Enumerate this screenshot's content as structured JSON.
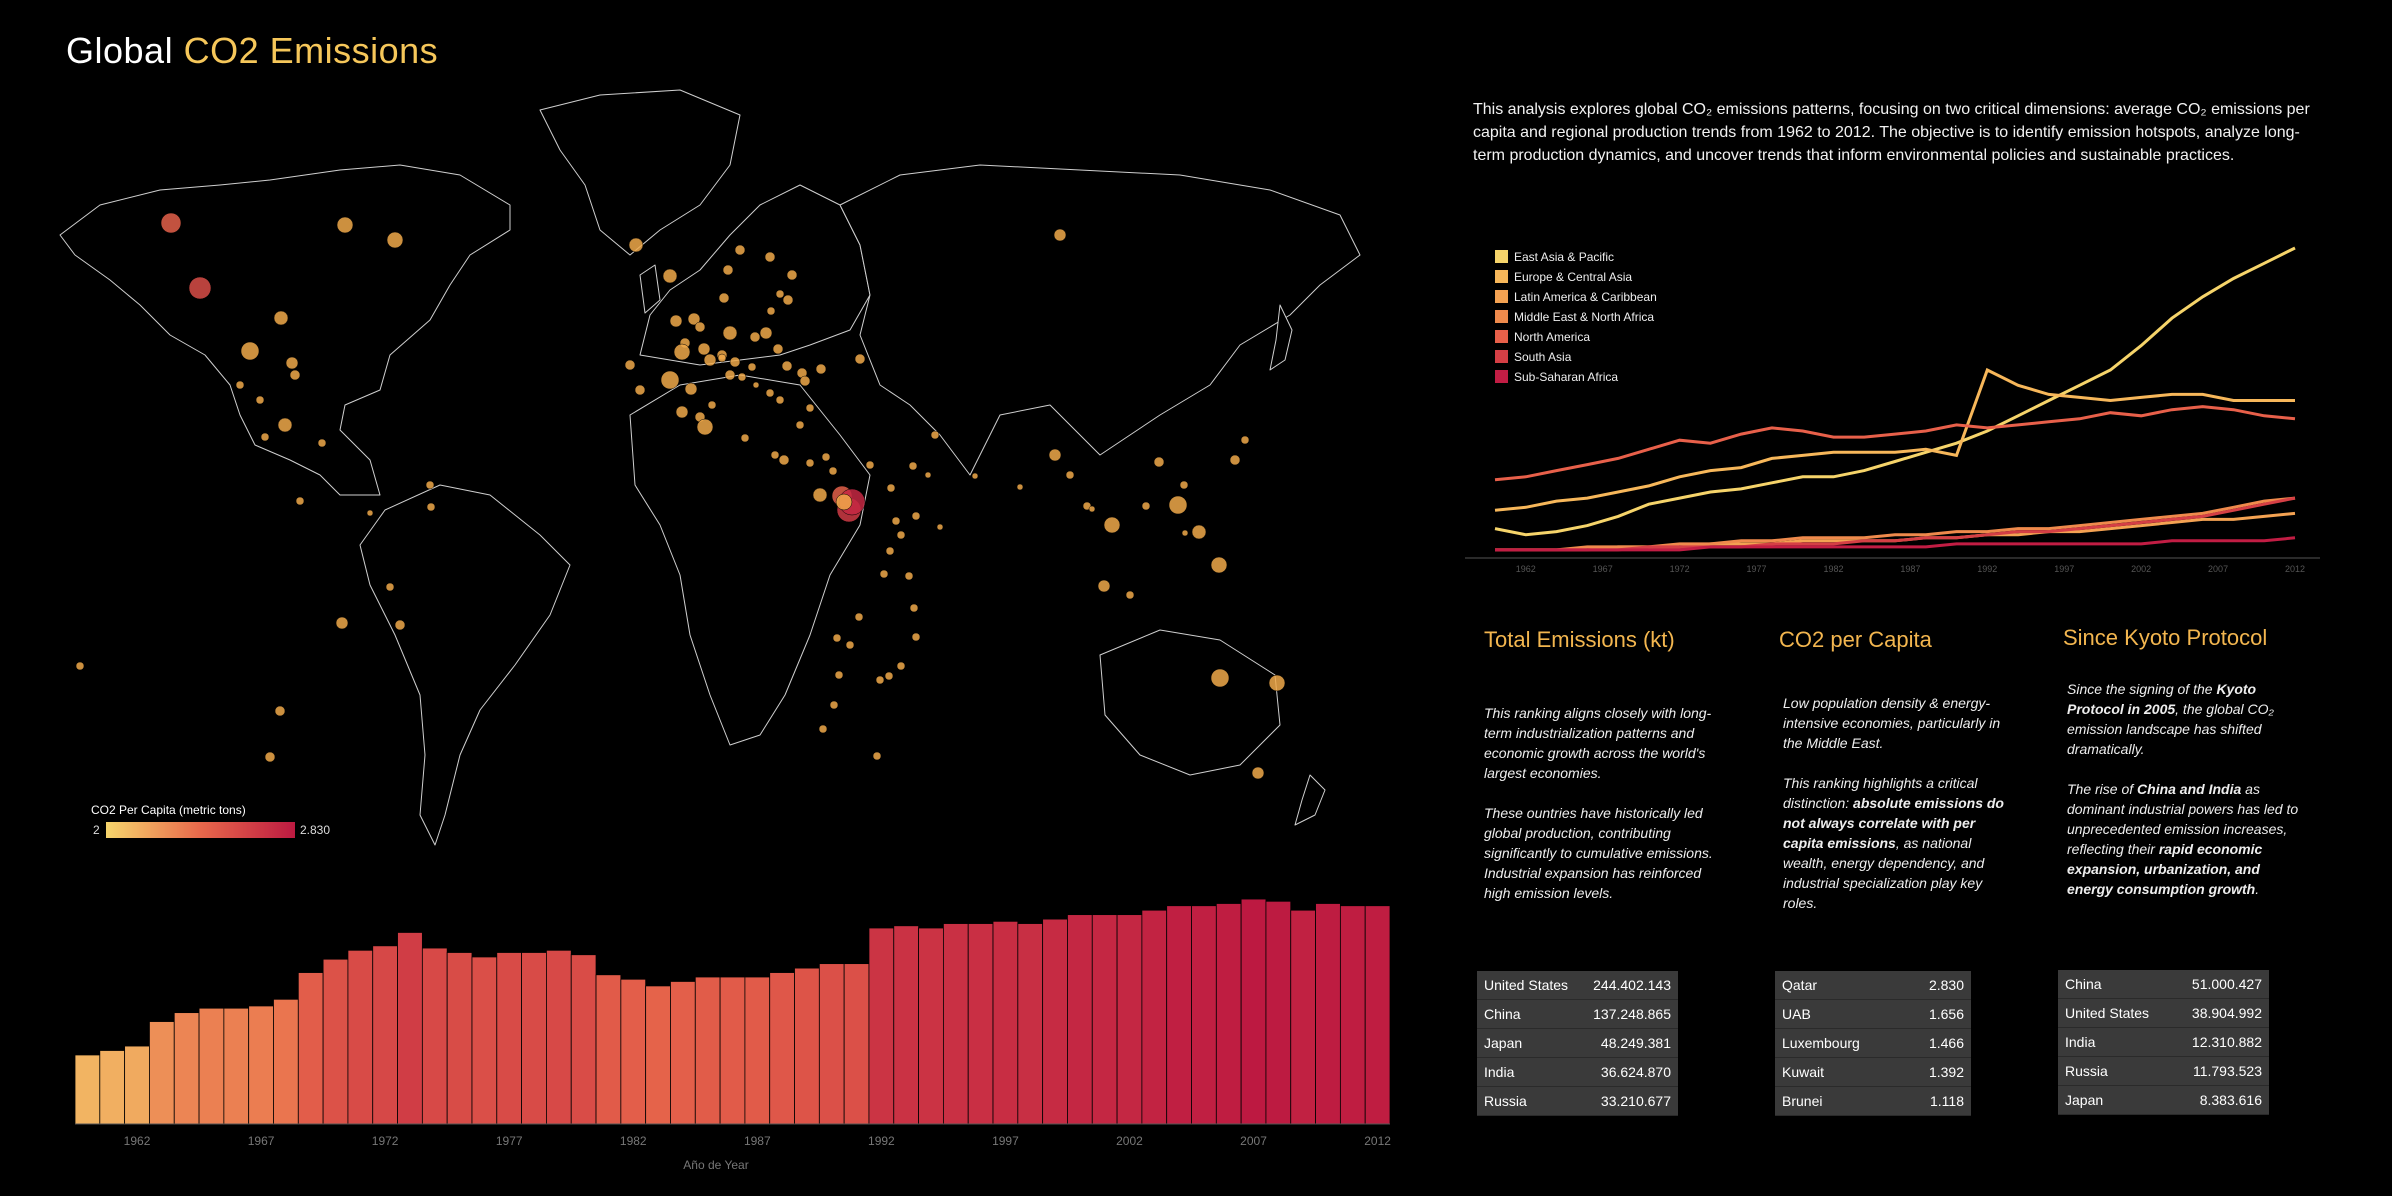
{
  "title": {
    "prefix": "Global ",
    "highlight": "CO2 Emissions"
  },
  "intro": "This analysis explores global CO₂ emissions patterns, focusing on two critical dimensions: average CO₂ emissions per capita and regional production trends from 1962 to 2012. The objective is to identify emission hotspots, analyze long-term production dynamics, and uncover trends that inform environmental policies and sustainable practices.",
  "map_legend": {
    "title": "CO2 Per Capita (metric tons)",
    "min": "2",
    "max": "2.830"
  },
  "colors": {
    "accent": "#f6c75a",
    "bar_low": "#f6d56c",
    "bar_mid": "#e8684b",
    "bar_high": "#bd1a41",
    "panel": "#3a3a3a"
  },
  "sections": [
    {
      "title": "Total Emissions (kt)"
    },
    {
      "title": "CO2 per Capita"
    },
    {
      "title": "Since Kyoto Protocol"
    }
  ],
  "tables": {
    "total": [
      {
        "country": "United States",
        "value": "244.402.143"
      },
      {
        "country": "China",
        "value": "137.248.865"
      },
      {
        "country": "Japan",
        "value": "48.249.381"
      },
      {
        "country": "India",
        "value": "36.624.870"
      },
      {
        "country": "Russia",
        "value": "33.210.677"
      }
    ],
    "per_capita": [
      {
        "country": "Qatar",
        "value": "2.830"
      },
      {
        "country": "UAB",
        "value": "1.656"
      },
      {
        "country": "Luxembourg",
        "value": "1.466"
      },
      {
        "country": "Kuwait",
        "value": "1.392"
      },
      {
        "country": "Brunei",
        "value": "1.118"
      }
    ],
    "kyoto": [
      {
        "country": "China",
        "value": "51.000.427"
      },
      {
        "country": "United States",
        "value": "38.904.992"
      },
      {
        "country": "India",
        "value": "12.310.882"
      },
      {
        "country": "Russia",
        "value": "11.793.523"
      },
      {
        "country": "Japan",
        "value": "8.383.616"
      }
    ]
  },
  "chart_data": [
    {
      "type": "line",
      "x": [
        1960,
        1962,
        1964,
        1966,
        1968,
        1970,
        1972,
        1974,
        1976,
        1978,
        1980,
        1982,
        1984,
        1986,
        1988,
        1990,
        1992,
        1994,
        1996,
        1998,
        2000,
        2002,
        2004,
        2006,
        2008,
        2010,
        2012
      ],
      "x_tick_labels": [
        "1962",
        "1967",
        "1972",
        "1977",
        "1982",
        "1987",
        "1992",
        "1997",
        "2002",
        "2007",
        "2012"
      ],
      "ylim": [
        0,
        100
      ],
      "grid": false,
      "legend_position": "top-left",
      "series": [
        {
          "name": "East Asia & Pacific",
          "color": "#f6d46a",
          "values": [
            8,
            6,
            7,
            9,
            12,
            16,
            18,
            20,
            21,
            23,
            25,
            25,
            27,
            30,
            33,
            36,
            40,
            45,
            50,
            55,
            60,
            68,
            77,
            84,
            90,
            95,
            100
          ]
        },
        {
          "name": "Europe & Central Asia",
          "color": "#f7b75a",
          "values": [
            14,
            15,
            17,
            18,
            20,
            22,
            25,
            27,
            28,
            31,
            32,
            33,
            33,
            33,
            34,
            32,
            60,
            55,
            52,
            51,
            50,
            51,
            52,
            52,
            50,
            50,
            50
          ]
        },
        {
          "name": "Latin America & Caribbean",
          "color": "#f4a252",
          "values": [
            1,
            1,
            1,
            1,
            2,
            2,
            2,
            3,
            3,
            3,
            4,
            4,
            4,
            4,
            5,
            5,
            6,
            6,
            7,
            7,
            8,
            9,
            10,
            11,
            11,
            12,
            13
          ]
        },
        {
          "name": "Middle East & North Africa",
          "color": "#ef8a4c",
          "values": [
            1,
            1,
            1,
            2,
            2,
            2,
            3,
            3,
            4,
            4,
            5,
            5,
            5,
            6,
            6,
            7,
            7,
            8,
            8,
            9,
            10,
            11,
            12,
            13,
            15,
            17,
            18
          ]
        },
        {
          "name": "North America",
          "color": "#e8604a",
          "values": [
            24,
            25,
            27,
            29,
            31,
            34,
            37,
            36,
            39,
            41,
            40,
            38,
            38,
            39,
            40,
            42,
            41,
            42,
            43,
            44,
            46,
            45,
            47,
            48,
            47,
            45,
            44
          ]
        },
        {
          "name": "South Asia",
          "color": "#d53f45",
          "values": [
            1,
            1,
            1,
            1,
            1,
            2,
            2,
            2,
            2,
            3,
            3,
            3,
            4,
            4,
            5,
            5,
            6,
            7,
            7,
            8,
            9,
            10,
            11,
            12,
            14,
            16,
            18
          ]
        },
        {
          "name": "Sub-Saharan Africa",
          "color": "#c21d44",
          "values": [
            1,
            1,
            1,
            1,
            1,
            1,
            1,
            2,
            2,
            2,
            2,
            2,
            2,
            2,
            2,
            3,
            3,
            3,
            3,
            3,
            3,
            3,
            4,
            4,
            4,
            4,
            5
          ]
        }
      ]
    },
    {
      "type": "bar",
      "categories": [
        "1960",
        "1961",
        "1962",
        "1963",
        "1964",
        "1965",
        "1966",
        "1967",
        "1968",
        "1969",
        "1970",
        "1971",
        "1972",
        "1973",
        "1974",
        "1975",
        "1976",
        "1977",
        "1978",
        "1979",
        "1980",
        "1981",
        "1982",
        "1983",
        "1984",
        "1985",
        "1986",
        "1987",
        "1988",
        "1989",
        "1990",
        "1991",
        "1992",
        "1993",
        "1994",
        "1995",
        "1996",
        "1997",
        "1998",
        "1999",
        "2000",
        "2001",
        "2002",
        "2003",
        "2004",
        "2005",
        "2006",
        "2007",
        "2008",
        "2009",
        "2010",
        "2011",
        "2012"
      ],
      "x_tick_labels": [
        "1962",
        "1967",
        "1972",
        "1977",
        "1982",
        "1987",
        "1992",
        "1997",
        "2002",
        "2007",
        "2012"
      ],
      "values": [
        31,
        33,
        35,
        46,
        50,
        52,
        52,
        53,
        56,
        68,
        74,
        78,
        80,
        86,
        79,
        77,
        75,
        77,
        77,
        78,
        76,
        67,
        65,
        62,
        64,
        66,
        66,
        66,
        68,
        70,
        72,
        72,
        88,
        89,
        88,
        90,
        90,
        91,
        90,
        92,
        94,
        94,
        94,
        96,
        98,
        98,
        99,
        101,
        100,
        96,
        99,
        98,
        98
      ],
      "xlabel": "Año de Year",
      "ylabel": "",
      "ylim": [
        0,
        110
      ]
    }
  ]
}
